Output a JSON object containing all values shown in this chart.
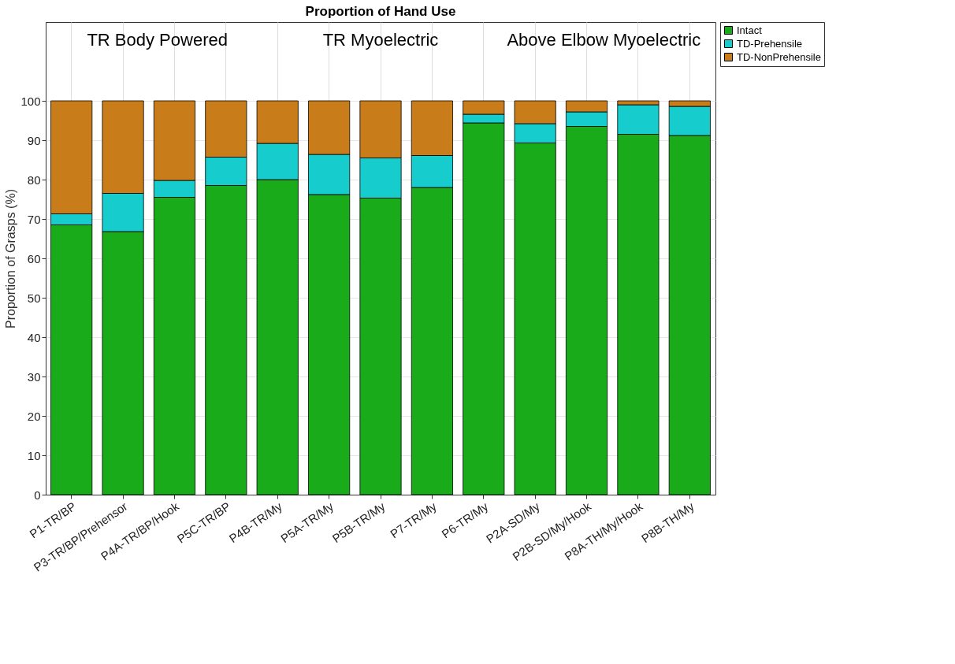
{
  "chart_data": {
    "type": "bar",
    "title": "Proportion of Hand Use",
    "ylabel": "Proportion of Grasps (%)",
    "stacked": true,
    "categories": [
      "P1-TR/BP",
      "P3-TR/BP/Prehensor",
      "P4A-TR/BP/Hook",
      "P5C-TR/BP",
      "P4B-TR/My",
      "P5A-TR/My",
      "P5B-TR/My",
      "P7-TR/My",
      "P6-TR/My",
      "P2A-SD/My",
      "P2B-SD/My/Hook",
      "P8A-TH/My/Hook",
      "P8B-TH/My"
    ],
    "series": [
      {
        "name": "Intact",
        "color": "#1aab1a",
        "values": [
          68.5,
          66.8,
          75.5,
          78.5,
          80.0,
          76.2,
          75.3,
          78.0,
          94.4,
          89.3,
          93.5,
          91.5,
          91.2
        ]
      },
      {
        "name": "TD-Prehensile",
        "color": "#17cccc",
        "values": [
          2.8,
          9.7,
          4.3,
          7.2,
          9.2,
          10.2,
          10.2,
          8.1,
          2.2,
          4.9,
          3.7,
          7.5,
          7.4
        ]
      },
      {
        "name": "TD-NonPrehensile",
        "color": "#c97d1a",
        "values": [
          28.7,
          23.5,
          20.2,
          14.3,
          10.8,
          13.6,
          14.5,
          13.9,
          3.4,
          5.8,
          2.8,
          1.0,
          1.4
        ]
      }
    ],
    "ylim": [
      0,
      120
    ],
    "yticks": [
      0,
      10,
      20,
      30,
      40,
      50,
      60,
      70,
      80,
      90,
      100
    ],
    "grid": true,
    "legend": "top right",
    "annotations": [
      "TR Body Powered",
      "TR Myoelectric",
      "Above Elbow Myoelectric"
    ]
  }
}
